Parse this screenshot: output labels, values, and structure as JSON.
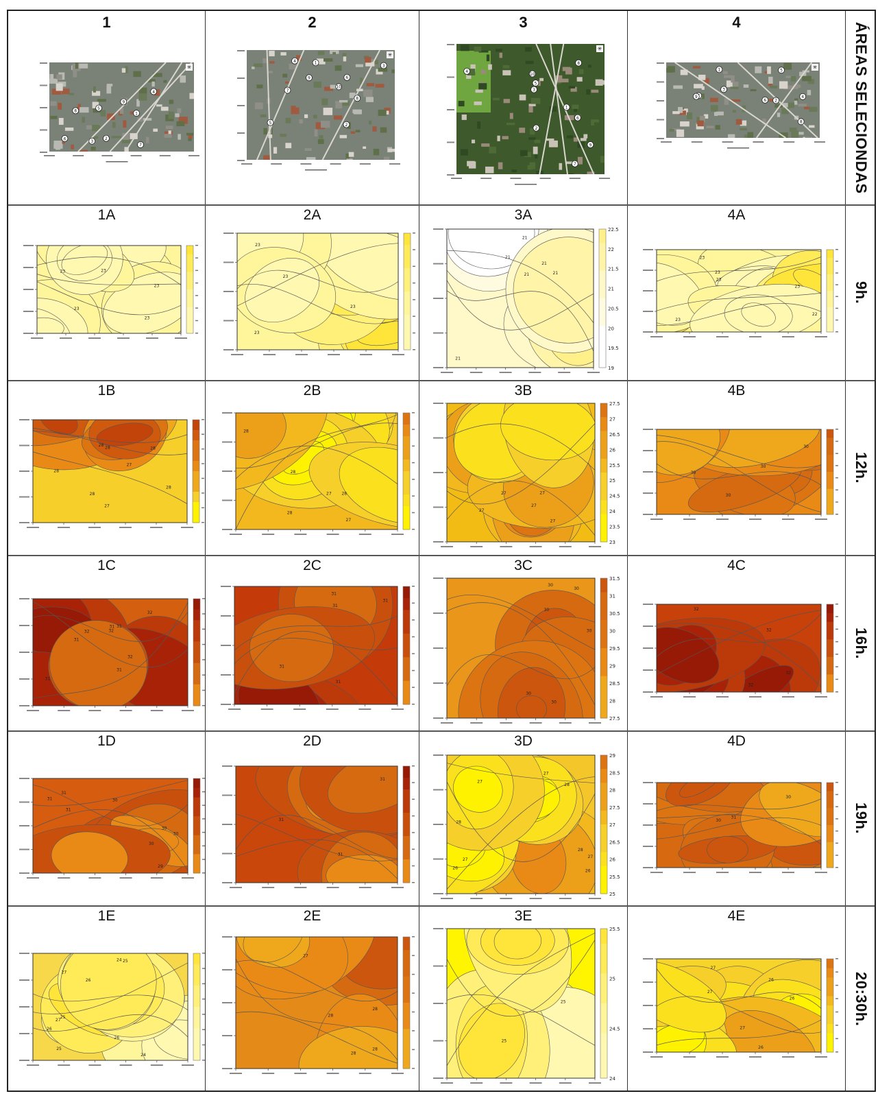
{
  "header": {
    "columns": [
      "1",
      "2",
      "3",
      "4"
    ],
    "side_label": "ÁREAS SELECIONDAS"
  },
  "time_labels": [
    "9h.",
    "12h.",
    "16h.",
    "19h.",
    "20:30h."
  ],
  "satellite": [
    {
      "key": "1",
      "points": [
        "1",
        "2",
        "3",
        "4",
        "5",
        "6",
        "7",
        "8",
        "9"
      ]
    },
    {
      "key": "2",
      "points": [
        "1",
        "2",
        "3",
        "4",
        "5",
        "6",
        "7",
        "8",
        "9",
        "10"
      ]
    },
    {
      "key": "3",
      "points": [
        "1",
        "2",
        "3",
        "4",
        "5",
        "6",
        "7",
        "8",
        "9",
        "10"
      ]
    },
    {
      "key": "4",
      "points": [
        "1",
        "2",
        "3",
        "4",
        "5",
        "6",
        "7",
        "8",
        "9"
      ]
    }
  ],
  "colors": {
    "pale": "#fff8c8",
    "light_yellow": "#fff59a",
    "yellow": "#fff200",
    "gold": "#f7cf2a",
    "orange": "#e98a16",
    "dark_orange": "#d76a10",
    "red_orange": "#c64a0c",
    "dark_red": "#a82208"
  },
  "maps": [
    {
      "id": "1A",
      "label": "1A",
      "scheme": "yellow",
      "base": "#fff59a",
      "colorbar": [],
      "contours": [
        "23",
        "23",
        "23",
        "23",
        "23"
      ]
    },
    {
      "id": "2A",
      "label": "2A",
      "scheme": "yellow",
      "base": "#fff59a",
      "colorbar": [],
      "contours": [
        "23",
        "23",
        "23",
        "23"
      ]
    },
    {
      "id": "3A",
      "label": "3A",
      "scheme": "pale",
      "base": "#fff8c8",
      "colorbar": [
        "22.5",
        "22",
        "21.5",
        "21",
        "20.5",
        "20",
        "19.5",
        "19"
      ],
      "contours": [
        "21",
        "21",
        "21",
        "21",
        "21",
        "21"
      ]
    },
    {
      "id": "4A",
      "label": "4A",
      "scheme": "yellow",
      "base": "#fff59a",
      "colorbar": [],
      "contours": [
        "23",
        "23",
        "23",
        "23",
        "23",
        "22"
      ]
    },
    {
      "id": "1B",
      "label": "1B",
      "scheme": "hot",
      "base": "#f7cf2a",
      "colorbar": [],
      "contours": [
        "28",
        "28",
        "28",
        "28",
        "27",
        "27",
        "28",
        "28"
      ]
    },
    {
      "id": "2B",
      "label": "2B",
      "scheme": "warm",
      "base": "#f2b81e",
      "colorbar": [],
      "contours": [
        "27",
        "27",
        "28",
        "28",
        "28",
        "28"
      ]
    },
    {
      "id": "3B",
      "label": "3B",
      "scheme": "warm",
      "base": "#f2bc14",
      "colorbar": [
        "27.5",
        "27",
        "26.5",
        "26",
        "25.5",
        "25",
        "24.5",
        "24",
        "23.5",
        "23"
      ],
      "contours": [
        "27",
        "27",
        "27",
        "27",
        "27"
      ]
    },
    {
      "id": "4B",
      "label": "4B",
      "scheme": "orange",
      "base": "#e98a16",
      "colorbar": [],
      "contours": [
        "30",
        "30",
        "30",
        "30"
      ]
    },
    {
      "id": "1C",
      "label": "1C",
      "scheme": "red",
      "base": "#d4600f",
      "colorbar": [],
      "contours": [
        "32",
        "32",
        "32",
        "32",
        "31",
        "31",
        "31",
        "31",
        "31"
      ]
    },
    {
      "id": "2C",
      "label": "2C",
      "scheme": "red",
      "base": "#c43a08",
      "colorbar": [],
      "contours": [
        "31",
        "31",
        "31",
        "31",
        "31"
      ]
    },
    {
      "id": "3C",
      "label": "3C",
      "scheme": "orange",
      "base": "#e9961a",
      "colorbar": [
        "31.5",
        "31",
        "30.5",
        "30",
        "29.5",
        "29",
        "28.5",
        "28",
        "27.5"
      ],
      "contours": [
        "30",
        "30",
        "30",
        "30",
        "30",
        "30"
      ]
    },
    {
      "id": "4C",
      "label": "4C",
      "scheme": "red",
      "base": "#c8400a",
      "colorbar": [],
      "contours": [
        "32",
        "32",
        "32",
        "32"
      ]
    },
    {
      "id": "1D",
      "label": "1D",
      "scheme": "red",
      "base": "#d65c10",
      "colorbar": [],
      "contours": [
        "31",
        "31",
        "31",
        "30",
        "30",
        "30",
        "30",
        "29"
      ]
    },
    {
      "id": "2D",
      "label": "2D",
      "scheme": "red",
      "base": "#c9470b",
      "colorbar": [],
      "contours": [
        "31",
        "31",
        "31"
      ]
    },
    {
      "id": "3D",
      "label": "3D",
      "scheme": "warm",
      "base": "#f5c62a",
      "colorbar": [
        "29",
        "28.5",
        "28",
        "27.5",
        "27",
        "26.5",
        "26",
        "25.5",
        "25"
      ],
      "contours": [
        "27",
        "28",
        "28",
        "28",
        "27",
        "27",
        "26",
        "26",
        "27"
      ]
    },
    {
      "id": "4D",
      "label": "4D",
      "scheme": "orange",
      "base": "#d76a10",
      "colorbar": [],
      "contours": [
        "30",
        "30",
        "31"
      ]
    },
    {
      "id": "1E",
      "label": "1E",
      "scheme": "yellow",
      "base": "#f7d84a",
      "colorbar": [],
      "contours": [
        "27",
        "26",
        "25",
        "24",
        "24",
        "25",
        "25",
        "26",
        "26",
        "27"
      ]
    },
    {
      "id": "2E",
      "label": "2E",
      "scheme": "orange",
      "base": "#e48a18",
      "colorbar": [],
      "contours": [
        "28",
        "28",
        "27",
        "28",
        "28"
      ]
    },
    {
      "id": "3E",
      "label": "3E",
      "scheme": "yellow",
      "base": "#fff500",
      "colorbar": [
        "25.5",
        "25",
        "24.5",
        "24"
      ],
      "contours": [
        "25",
        "25"
      ]
    },
    {
      "id": "4E",
      "label": "4E",
      "scheme": "warm",
      "base": "#f7d42a",
      "colorbar": [],
      "contours": [
        "27",
        "27",
        "27",
        "26",
        "26",
        "26"
      ]
    }
  ]
}
